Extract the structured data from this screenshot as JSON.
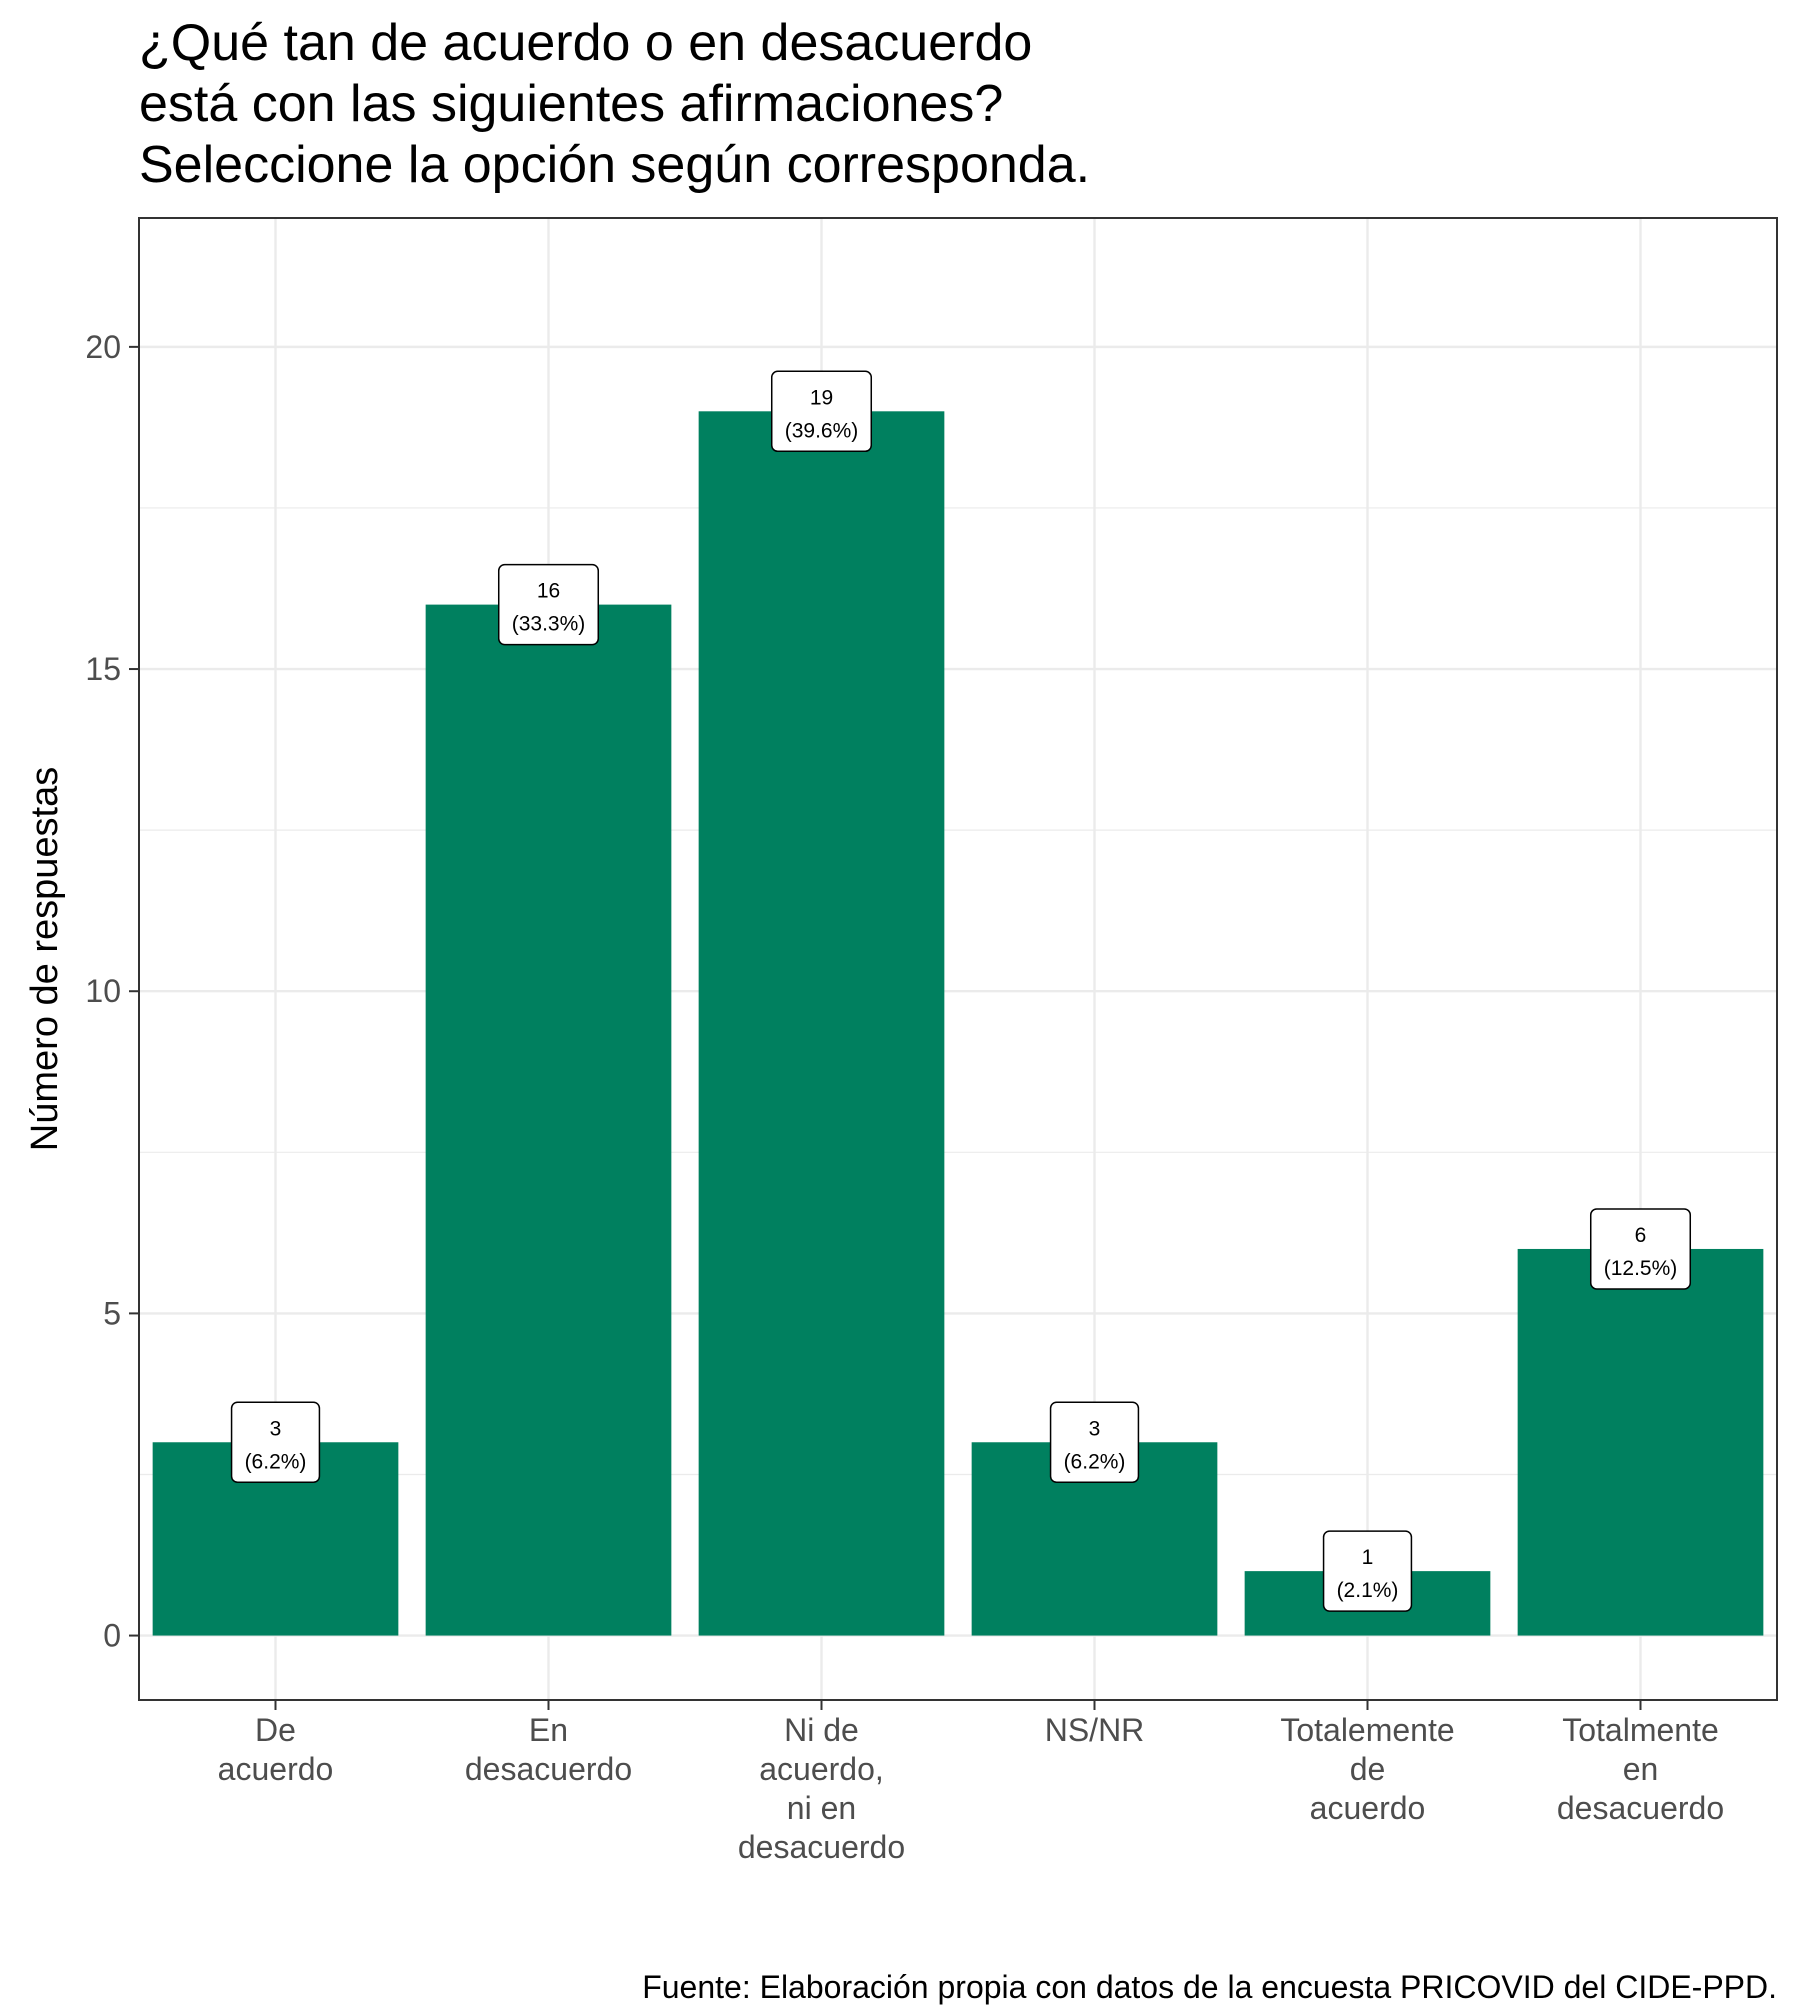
{
  "chart_data": {
    "type": "bar",
    "title": [
      "¿Qué tan de acuerdo o en desacuerdo",
      "está con las siguientes afirmaciones?",
      "Seleccione la opción según corresponda."
    ],
    "ylabel": "Número de respuestas",
    "xlabel": "",
    "caption": "Fuente: Elaboración propia con datos de la encuesta PRICOVID del CIDE-PPD.",
    "categories": [
      [
        "De",
        "acuerdo"
      ],
      [
        "En",
        "desacuerdo"
      ],
      [
        "Ni de",
        "acuerdo,",
        "ni en",
        "desacuerdo"
      ],
      [
        "NS/NR"
      ],
      [
        "Totalemente",
        "de",
        "acuerdo"
      ],
      [
        "Totalmente",
        "en",
        "desacuerdo"
      ]
    ],
    "values": [
      3,
      16,
      19,
      3,
      1,
      6
    ],
    "value_labels": [
      "3",
      "16",
      "19",
      "3",
      "1",
      "6"
    ],
    "percent_labels": [
      "(6.2%)",
      "(33.3%)",
      "(39.6%)",
      "(6.2%)",
      "(2.1%)",
      "(12.5%)"
    ],
    "yticks": [
      0,
      5,
      10,
      15,
      20
    ],
    "ylim": [
      -1,
      22
    ],
    "bar_color": "#00805f",
    "grid": true
  }
}
